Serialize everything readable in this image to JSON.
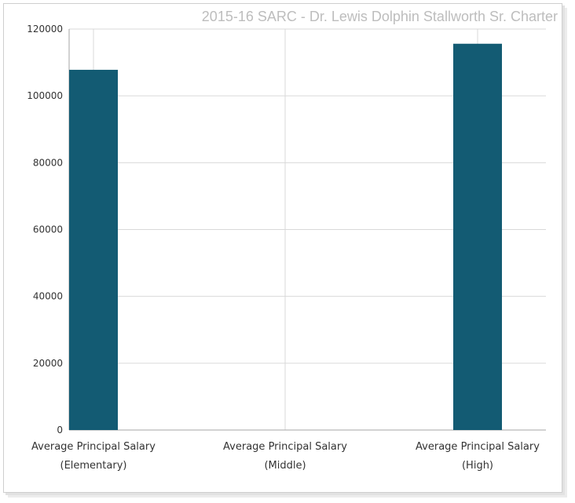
{
  "chart_data": {
    "type": "bar",
    "title": "2015-16 SARC - Dr. Lewis Dolphin Stallworth Sr. Charter",
    "categories": [
      [
        "Average Principal Salary",
        "(Elementary)"
      ],
      [
        "Average Principal Salary",
        "(Middle)"
      ],
      [
        "Average Principal Salary",
        "(High)"
      ]
    ],
    "values": [
      107800,
      0,
      115600
    ],
    "yticks": [
      0,
      20000,
      40000,
      60000,
      80000,
      100000,
      120000
    ],
    "ylim": [
      0,
      120000
    ],
    "grid": true,
    "legend": "none",
    "colors": {
      "bar": "#135b73",
      "grid": "#d9d9d9",
      "axis": "#a6a6a6",
      "title": "#bdbdbd"
    }
  }
}
